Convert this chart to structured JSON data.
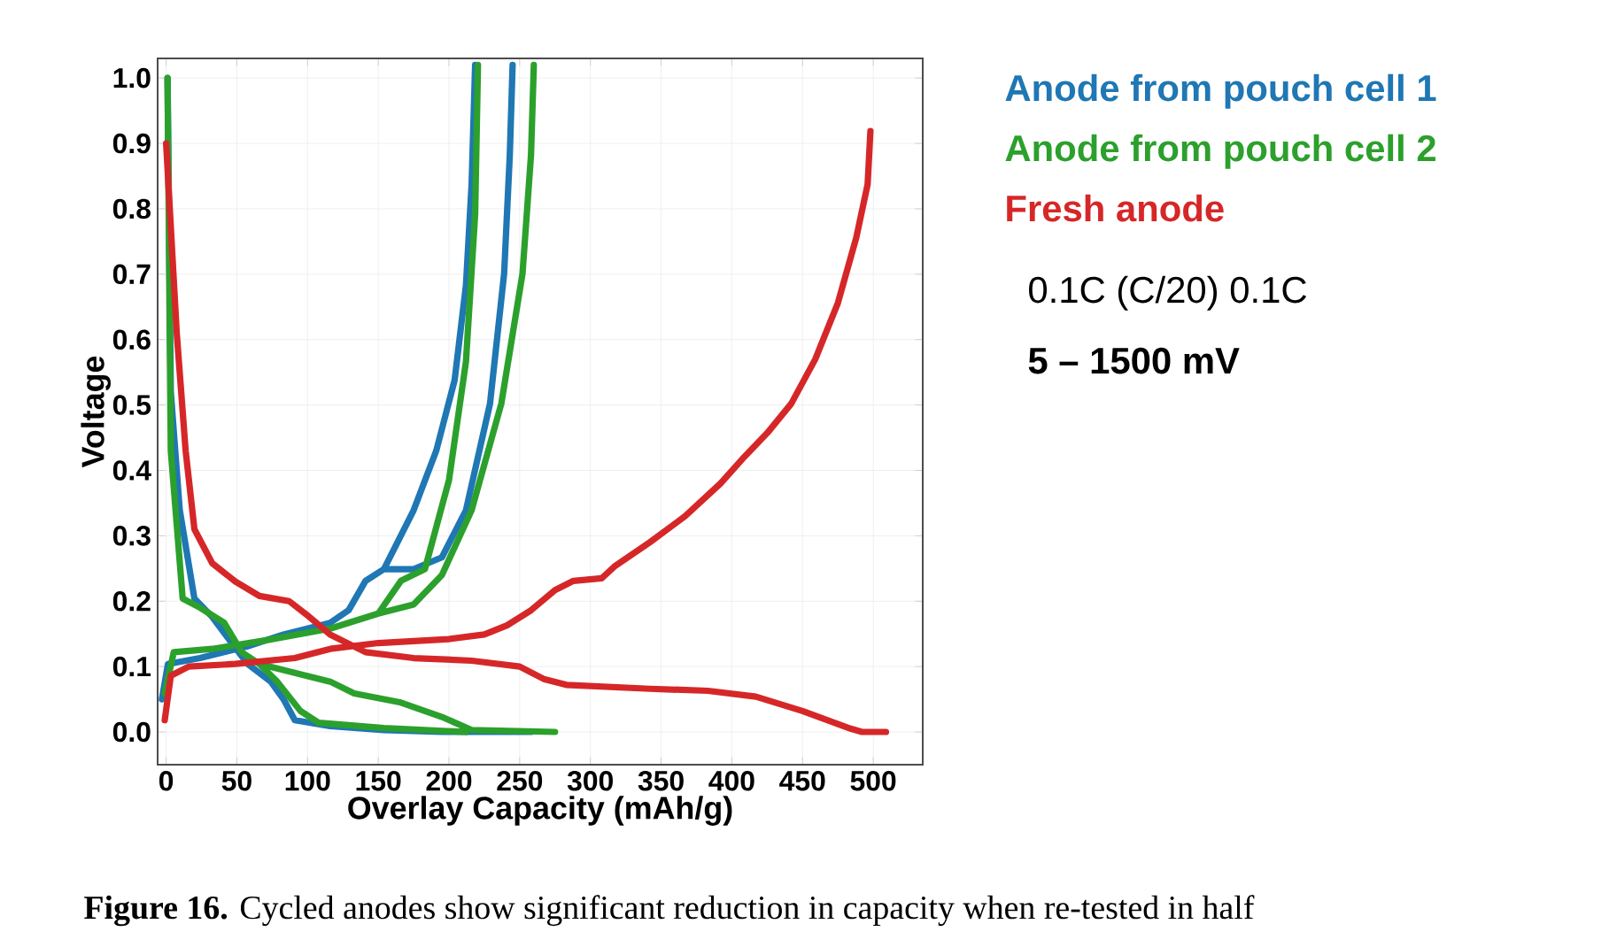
{
  "chart_data": {
    "type": "line",
    "xlabel": "Overlay Capacity (mAh/g)",
    "ylabel": "Voltage",
    "xlim": [
      -6,
      535
    ],
    "ylim": [
      -0.05,
      1.03
    ],
    "xticks": [
      0,
      50,
      100,
      150,
      200,
      250,
      300,
      350,
      400,
      450,
      500
    ],
    "yticks": [
      {
        "value": 0,
        "label": "0.0"
      },
      {
        "value": 0.1,
        "label": "0.1"
      },
      {
        "value": 0.2,
        "label": "0.2"
      },
      {
        "value": 0.3,
        "label": "0.3"
      },
      {
        "value": 0.4,
        "label": "0.4"
      },
      {
        "value": 0.5,
        "label": "0.5"
      },
      {
        "value": 0.6,
        "label": "0.6"
      },
      {
        "value": 0.7,
        "label": "0.7"
      },
      {
        "value": 0.8,
        "label": "0.8"
      },
      {
        "value": 0.9,
        "label": "0.9"
      },
      {
        "value": 1.0,
        "label": "1.0"
      }
    ],
    "grid": true,
    "legend": "right",
    "line_style": "solid",
    "series": [
      {
        "name": "Anode from pouch cell 1",
        "color": "#1f77b4",
        "x": [
          1,
          3.3,
          9.6,
          20,
          32.6,
          45,
          57.6,
          74,
          83,
          91,
          116,
          154,
          195,
          258,
          null,
          -3,
          1.3,
          24,
          57.6,
          83,
          116,
          129,
          141,
          154,
          175,
          191,
          204,
          212,
          216,
          218.5,
          null,
          154,
          175,
          195,
          212,
          229,
          239,
          243,
          245
        ],
        "values": [
          1.0,
          0.52,
          0.34,
          0.204,
          0.176,
          0.14,
          0.104,
          0.077,
          0.05,
          0.018,
          0.009,
          0.003,
          0,
          0,
          null,
          0.05,
          0.104,
          0.113,
          0.131,
          0.149,
          0.167,
          0.186,
          0.231,
          0.249,
          0.339,
          0.43,
          0.538,
          0.683,
          0.837,
          1.02,
          null,
          0.249,
          0.249,
          0.267,
          0.339,
          0.502,
          0.701,
          0.882,
          1.02
        ]
      },
      {
        "name": "Anode from pouch cell 2",
        "color": "#2ca02c",
        "x": [
          1,
          3.3,
          11.7,
          24,
          41,
          53.5,
          66,
          99,
          116,
          133,
          166,
          195,
          216,
          275,
          null,
          41,
          53.5,
          66,
          78.5,
          95,
          108,
          154,
          212,
          null,
          -1,
          5.4,
          32.6,
          70,
          116,
          150,
          166,
          183,
          200,
          212,
          218.5,
          220.5,
          null,
          150,
          175,
          195,
          216,
          237,
          252,
          258,
          260
        ],
        "values": [
          1.0,
          0.43,
          0.204,
          0.19,
          0.167,
          0.122,
          0.104,
          0.086,
          0.077,
          0.059,
          0.045,
          0.023,
          0.003,
          0,
          null,
          0.167,
          0.122,
          0.104,
          0.077,
          0.032,
          0.014,
          0.006,
          0,
          null,
          0.059,
          0.122,
          0.127,
          0.14,
          0.158,
          0.181,
          0.231,
          0.249,
          0.385,
          0.566,
          0.792,
          1.02,
          null,
          0.181,
          0.195,
          0.24,
          0.339,
          0.502,
          0.701,
          0.882,
          1.02
        ]
      },
      {
        "name": "Fresh anode",
        "color": "#d62728",
        "x": [
          0,
          7.5,
          13.8,
          20,
          32.6,
          49,
          66,
          87,
          99,
          116,
          141,
          175,
          216,
          250,
          267,
          283,
          342,
          383,
          417,
          450,
          484,
          492,
          509,
          null,
          -1,
          3.3,
          16,
          49,
          91,
          116,
          150,
          200,
          225,
          241,
          258,
          275,
          288,
          308,
          317,
          342,
          367,
          392,
          409,
          425,
          442,
          459,
          475,
          488,
          496,
          498
        ],
        "values": [
          0.9,
          0.61,
          0.43,
          0.31,
          0.258,
          0.23,
          0.208,
          0.2,
          0.18,
          0.149,
          0.122,
          0.113,
          0.109,
          0.1,
          0.081,
          0.072,
          0.066,
          0.063,
          0.054,
          0.032,
          0.005,
          0,
          0,
          null,
          0.018,
          0.086,
          0.1,
          0.104,
          0.113,
          0.127,
          0.136,
          0.142,
          0.149,
          0.163,
          0.186,
          0.217,
          0.231,
          0.235,
          0.253,
          0.29,
          0.33,
          0.38,
          0.421,
          0.457,
          0.502,
          0.57,
          0.656,
          0.756,
          0.837,
          0.919
        ]
      }
    ],
    "annotations": [
      "0.1C (C/20) 0.1C",
      "**5 – 1500 mV**",
      "**Figure 16.**  Cycled anodes show significant reduction in capacity when re-tested in half"
    ]
  }
}
